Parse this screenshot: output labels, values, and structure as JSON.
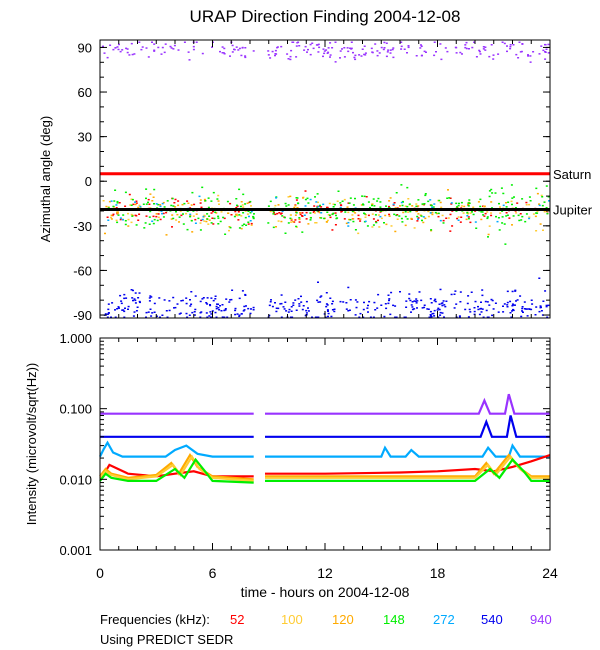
{
  "chart_data": {
    "title": "URAP Direction Finding  2004-12-08",
    "xlabel": "time - hours on 2004-12-08",
    "xlim": [
      0,
      24
    ],
    "x_ticks": [
      "0",
      "6",
      "12",
      "18",
      "24"
    ],
    "gap": [
      8.2,
      8.8
    ],
    "top_panel": {
      "type": "scatter",
      "ylabel": "Azimuthal angle (deg)",
      "ylim": [
        -92,
        95
      ],
      "y_ticks": [
        "90",
        "60",
        "30",
        "0",
        "-30",
        "-60",
        "-90"
      ],
      "reference_lines": [
        {
          "label": "Saturn",
          "value": 5,
          "color": "#ff0000"
        },
        {
          "label": "Jupiter",
          "value": -19,
          "color": "#000000"
        }
      ],
      "clusters": [
        {
          "frequency": "52",
          "center": -20,
          "spread": 5,
          "count": 180
        },
        {
          "frequency": "100",
          "center": -20,
          "spread": 6,
          "count": 130
        },
        {
          "frequency": "120",
          "center": -20,
          "spread": 6,
          "count": 130
        },
        {
          "frequency": "148",
          "center": -19,
          "spread": 7,
          "count": 320
        },
        {
          "frequency": "272",
          "center": -20,
          "spread": 6,
          "count": 60
        },
        {
          "frequency": "540",
          "center": -84,
          "spread": 5,
          "count": 420
        },
        {
          "frequency": "940",
          "center": 89,
          "spread": 3,
          "count": 240
        }
      ]
    },
    "bottom_panel": {
      "type": "line",
      "scale": "log",
      "ylabel": "Intensity (microvolt/sqrt(Hz))",
      "ylim": [
        0.001,
        1.0
      ],
      "y_ticks": [
        "1.000",
        "0.100",
        "0.010",
        "0.001"
      ],
      "series": [
        {
          "name": "940",
          "color": "#9933ff",
          "x": [
            0,
            8.2,
            8.8,
            20.2,
            20.5,
            20.8,
            21.6,
            21.8,
            22.1,
            24
          ],
          "y": [
            0.085,
            0.085,
            0.085,
            0.085,
            0.13,
            0.085,
            0.085,
            0.16,
            0.085,
            0.085
          ]
        },
        {
          "name": "540",
          "color": "#0000ee",
          "x": [
            0,
            8.2,
            8.8,
            20.3,
            20.6,
            20.9,
            21.7,
            21.9,
            22.2,
            24
          ],
          "y": [
            0.04,
            0.04,
            0.04,
            0.04,
            0.065,
            0.04,
            0.04,
            0.08,
            0.04,
            0.04
          ]
        },
        {
          "name": "272",
          "color": "#00aaff",
          "x": [
            0,
            0.2,
            0.4,
            0.7,
            1.2,
            3.5,
            4.0,
            4.6,
            5.2,
            6.0,
            8.2,
            8.8,
            15.0,
            15.2,
            15.5,
            16.3,
            16.6,
            17.0,
            20.4,
            20.7,
            21.1,
            21.8,
            22.0,
            22.4,
            24
          ],
          "y": [
            0.021,
            0.027,
            0.033,
            0.024,
            0.021,
            0.021,
            0.026,
            0.03,
            0.023,
            0.021,
            0.021,
            0.021,
            0.021,
            0.028,
            0.021,
            0.021,
            0.026,
            0.021,
            0.021,
            0.028,
            0.021,
            0.021,
            0.03,
            0.021,
            0.021
          ]
        },
        {
          "name": "52",
          "color": "#ff0000",
          "x": [
            0,
            0.3,
            0.5,
            1.5,
            3.0,
            4.0,
            5.0,
            6.0,
            8.2,
            8.8,
            12,
            16,
            18,
            20,
            21,
            22,
            23,
            24
          ],
          "y": [
            0.011,
            0.013,
            0.016,
            0.012,
            0.011,
            0.012,
            0.013,
            0.011,
            0.011,
            0.012,
            0.012,
            0.0125,
            0.013,
            0.014,
            0.013,
            0.015,
            0.018,
            0.022
          ]
        },
        {
          "name": "120",
          "color": "#ffaa00",
          "x": [
            0,
            0.3,
            0.6,
            1.5,
            3.0,
            3.8,
            4.2,
            4.8,
            5.2,
            6.0,
            8.2,
            8.8,
            12,
            16,
            18,
            20,
            20.6,
            21.0,
            21.8,
            22.3,
            23,
            24
          ],
          "y": [
            0.011,
            0.014,
            0.012,
            0.0105,
            0.0115,
            0.017,
            0.012,
            0.022,
            0.015,
            0.011,
            0.01,
            0.011,
            0.011,
            0.011,
            0.011,
            0.011,
            0.017,
            0.012,
            0.022,
            0.015,
            0.011,
            0.011
          ]
        },
        {
          "name": "100",
          "color": "#ffcc33",
          "x": [
            0,
            0.3,
            0.6,
            1.5,
            3.0,
            3.9,
            4.3,
            4.9,
            5.3,
            6.0,
            8.2,
            8.8,
            12,
            16,
            18,
            20,
            20.7,
            21.1,
            21.9,
            22.4,
            23,
            24
          ],
          "y": [
            0.0105,
            0.013,
            0.0115,
            0.01,
            0.011,
            0.016,
            0.0115,
            0.021,
            0.014,
            0.0105,
            0.0095,
            0.0105,
            0.0105,
            0.0105,
            0.0105,
            0.0105,
            0.016,
            0.0115,
            0.021,
            0.014,
            0.0105,
            0.0105
          ]
        },
        {
          "name": "148",
          "color": "#00ee00",
          "x": [
            0,
            0.3,
            0.6,
            1.5,
            3.0,
            4.0,
            4.5,
            5.1,
            5.6,
            6.0,
            8.2,
            8.8,
            12,
            16,
            18,
            20,
            20.8,
            21.3,
            22.0,
            22.6,
            23,
            24
          ],
          "y": [
            0.0095,
            0.012,
            0.0105,
            0.0095,
            0.0095,
            0.014,
            0.0105,
            0.019,
            0.013,
            0.0095,
            0.009,
            0.0095,
            0.0095,
            0.0095,
            0.0095,
            0.0095,
            0.014,
            0.0105,
            0.019,
            0.013,
            0.0095,
            0.0095
          ]
        }
      ]
    },
    "legend": {
      "label": "Frequencies (kHz):",
      "items": [
        {
          "name": "52",
          "color": "#ff0000"
        },
        {
          "name": "100",
          "color": "#ffcc33"
        },
        {
          "name": "120",
          "color": "#ffaa00"
        },
        {
          "name": "148",
          "color": "#00ee00"
        },
        {
          "name": "272",
          "color": "#00aaff"
        },
        {
          "name": "540",
          "color": "#0000ee"
        },
        {
          "name": "940",
          "color": "#9933ff"
        }
      ]
    },
    "note": "Using PREDICT SEDR"
  }
}
